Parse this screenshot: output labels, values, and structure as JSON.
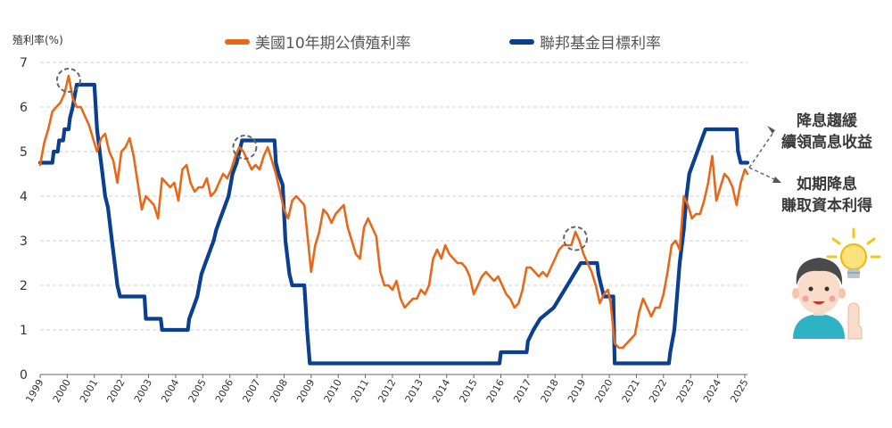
{
  "chart_data": {
    "type": "line",
    "ylabel": "殖利率(%)",
    "ylim": [
      0,
      7
    ],
    "yticks": [
      "0",
      "1",
      "2",
      "3",
      "4",
      "5",
      "6",
      "7"
    ],
    "xlim": [
      1999,
      2025.1
    ],
    "xticks": [
      "1999",
      "2000",
      "2001",
      "2002",
      "2003",
      "2004",
      "2005",
      "2006",
      "2007",
      "2008",
      "2009",
      "2010",
      "2011",
      "2012",
      "2013",
      "2014",
      "2015",
      "2016",
      "2017",
      "2018",
      "2019",
      "2020",
      "2021",
      "2022",
      "2023",
      "2024",
      "2025"
    ],
    "legend_position": "top",
    "grid": "horizontal-dashed",
    "series": [
      {
        "name": "美國10年期公債殖利率",
        "color": "#E8681A",
        "points": [
          [
            1999.0,
            4.7
          ],
          [
            1999.15,
            5.2
          ],
          [
            1999.3,
            5.5
          ],
          [
            1999.45,
            5.9
          ],
          [
            1999.6,
            6.0
          ],
          [
            1999.75,
            6.1
          ],
          [
            1999.9,
            6.3
          ],
          [
            2000.05,
            6.7
          ],
          [
            2000.2,
            6.2
          ],
          [
            2000.35,
            6.0
          ],
          [
            2000.5,
            6.0
          ],
          [
            2000.65,
            5.8
          ],
          [
            2000.8,
            5.6
          ],
          [
            2000.95,
            5.3
          ],
          [
            2001.1,
            5.0
          ],
          [
            2001.25,
            5.3
          ],
          [
            2001.4,
            5.4
          ],
          [
            2001.55,
            5.0
          ],
          [
            2001.7,
            4.8
          ],
          [
            2001.85,
            4.3
          ],
          [
            2002.0,
            5.0
          ],
          [
            2002.15,
            5.1
          ],
          [
            2002.3,
            5.3
          ],
          [
            2002.45,
            4.9
          ],
          [
            2002.6,
            4.3
          ],
          [
            2002.75,
            3.7
          ],
          [
            2002.9,
            4.0
          ],
          [
            2003.05,
            3.9
          ],
          [
            2003.2,
            3.8
          ],
          [
            2003.35,
            3.5
          ],
          [
            2003.5,
            4.4
          ],
          [
            2003.65,
            4.3
          ],
          [
            2003.8,
            4.2
          ],
          [
            2003.95,
            4.3
          ],
          [
            2004.1,
            3.9
          ],
          [
            2004.25,
            4.6
          ],
          [
            2004.4,
            4.7
          ],
          [
            2004.55,
            4.3
          ],
          [
            2004.7,
            4.1
          ],
          [
            2004.85,
            4.2
          ],
          [
            2005.0,
            4.2
          ],
          [
            2005.15,
            4.4
          ],
          [
            2005.3,
            4.0
          ],
          [
            2005.45,
            4.1
          ],
          [
            2005.6,
            4.3
          ],
          [
            2005.75,
            4.5
          ],
          [
            2005.9,
            4.4
          ],
          [
            2006.05,
            4.6
          ],
          [
            2006.2,
            4.9
          ],
          [
            2006.35,
            5.1
          ],
          [
            2006.5,
            5.0
          ],
          [
            2006.65,
            4.8
          ],
          [
            2006.8,
            4.6
          ],
          [
            2006.95,
            4.7
          ],
          [
            2007.1,
            4.6
          ],
          [
            2007.25,
            4.9
          ],
          [
            2007.4,
            5.1
          ],
          [
            2007.55,
            4.8
          ],
          [
            2007.7,
            4.5
          ],
          [
            2007.85,
            4.1
          ],
          [
            2008.0,
            3.7
          ],
          [
            2008.15,
            3.5
          ],
          [
            2008.3,
            3.9
          ],
          [
            2008.45,
            4.0
          ],
          [
            2008.6,
            3.9
          ],
          [
            2008.75,
            3.8
          ],
          [
            2008.9,
            2.9
          ],
          [
            2009.0,
            2.3
          ],
          [
            2009.15,
            2.9
          ],
          [
            2009.3,
            3.2
          ],
          [
            2009.45,
            3.7
          ],
          [
            2009.6,
            3.6
          ],
          [
            2009.75,
            3.4
          ],
          [
            2009.9,
            3.6
          ],
          [
            2010.05,
            3.7
          ],
          [
            2010.2,
            3.8
          ],
          [
            2010.35,
            3.3
          ],
          [
            2010.5,
            3.0
          ],
          [
            2010.65,
            2.7
          ],
          [
            2010.8,
            2.6
          ],
          [
            2010.95,
            3.3
          ],
          [
            2011.1,
            3.5
          ],
          [
            2011.25,
            3.3
          ],
          [
            2011.4,
            3.1
          ],
          [
            2011.55,
            2.3
          ],
          [
            2011.7,
            2.0
          ],
          [
            2011.85,
            2.0
          ],
          [
            2012.0,
            1.9
          ],
          [
            2012.15,
            2.1
          ],
          [
            2012.3,
            1.7
          ],
          [
            2012.45,
            1.5
          ],
          [
            2012.6,
            1.6
          ],
          [
            2012.75,
            1.7
          ],
          [
            2012.9,
            1.7
          ],
          [
            2013.05,
            1.9
          ],
          [
            2013.2,
            1.8
          ],
          [
            2013.35,
            2.0
          ],
          [
            2013.5,
            2.6
          ],
          [
            2013.65,
            2.8
          ],
          [
            2013.8,
            2.6
          ],
          [
            2013.95,
            2.9
          ],
          [
            2014.1,
            2.7
          ],
          [
            2014.25,
            2.6
          ],
          [
            2014.4,
            2.5
          ],
          [
            2014.55,
            2.5
          ],
          [
            2014.7,
            2.4
          ],
          [
            2014.85,
            2.2
          ],
          [
            2015.0,
            1.8
          ],
          [
            2015.15,
            2.0
          ],
          [
            2015.3,
            2.2
          ],
          [
            2015.45,
            2.3
          ],
          [
            2015.6,
            2.2
          ],
          [
            2015.75,
            2.1
          ],
          [
            2015.9,
            2.2
          ],
          [
            2016.05,
            2.0
          ],
          [
            2016.2,
            1.8
          ],
          [
            2016.35,
            1.7
          ],
          [
            2016.5,
            1.5
          ],
          [
            2016.65,
            1.6
          ],
          [
            2016.8,
            1.9
          ],
          [
            2016.95,
            2.4
          ],
          [
            2017.1,
            2.4
          ],
          [
            2017.25,
            2.3
          ],
          [
            2017.4,
            2.2
          ],
          [
            2017.55,
            2.3
          ],
          [
            2017.7,
            2.2
          ],
          [
            2017.85,
            2.4
          ],
          [
            2018.0,
            2.6
          ],
          [
            2018.15,
            2.8
          ],
          [
            2018.3,
            2.9
          ],
          [
            2018.45,
            2.9
          ],
          [
            2018.6,
            2.9
          ],
          [
            2018.75,
            3.2
          ],
          [
            2018.9,
            3.0
          ],
          [
            2019.05,
            2.7
          ],
          [
            2019.2,
            2.5
          ],
          [
            2019.35,
            2.3
          ],
          [
            2019.5,
            2.0
          ],
          [
            2019.65,
            1.6
          ],
          [
            2019.8,
            1.8
          ],
          [
            2019.95,
            1.9
          ],
          [
            2020.05,
            1.6
          ],
          [
            2020.2,
            0.7
          ],
          [
            2020.35,
            0.6
          ],
          [
            2020.5,
            0.6
          ],
          [
            2020.65,
            0.7
          ],
          [
            2020.8,
            0.8
          ],
          [
            2020.95,
            0.9
          ],
          [
            2021.1,
            1.4
          ],
          [
            2021.25,
            1.7
          ],
          [
            2021.4,
            1.5
          ],
          [
            2021.55,
            1.3
          ],
          [
            2021.7,
            1.5
          ],
          [
            2021.85,
            1.5
          ],
          [
            2022.0,
            1.8
          ],
          [
            2022.15,
            2.3
          ],
          [
            2022.3,
            2.9
          ],
          [
            2022.45,
            3.0
          ],
          [
            2022.6,
            2.8
          ],
          [
            2022.75,
            4.0
          ],
          [
            2022.9,
            3.8
          ],
          [
            2023.05,
            3.5
          ],
          [
            2023.2,
            3.6
          ],
          [
            2023.35,
            3.6
          ],
          [
            2023.5,
            3.9
          ],
          [
            2023.65,
            4.3
          ],
          [
            2023.8,
            4.9
          ],
          [
            2023.95,
            3.9
          ],
          [
            2024.1,
            4.2
          ],
          [
            2024.25,
            4.5
          ],
          [
            2024.4,
            4.4
          ],
          [
            2024.55,
            4.2
          ],
          [
            2024.7,
            3.8
          ],
          [
            2024.85,
            4.3
          ],
          [
            2025.0,
            4.6
          ],
          [
            2025.1,
            4.5
          ]
        ]
      },
      {
        "name": "聯邦基金目標利率",
        "color": "#0B3F8F",
        "points": [
          [
            1999.0,
            4.75
          ],
          [
            1999.45,
            4.75
          ],
          [
            1999.5,
            5.0
          ],
          [
            1999.65,
            5.0
          ],
          [
            1999.7,
            5.25
          ],
          [
            1999.85,
            5.25
          ],
          [
            1999.9,
            5.5
          ],
          [
            2000.05,
            5.5
          ],
          [
            2000.1,
            5.75
          ],
          [
            2000.2,
            6.0
          ],
          [
            2000.35,
            6.5
          ],
          [
            2001.0,
            6.5
          ],
          [
            2001.05,
            6.0
          ],
          [
            2001.1,
            5.5
          ],
          [
            2001.2,
            5.0
          ],
          [
            2001.3,
            4.5
          ],
          [
            2001.4,
            4.0
          ],
          [
            2001.5,
            3.75
          ],
          [
            2001.65,
            3.0
          ],
          [
            2001.75,
            2.5
          ],
          [
            2001.85,
            2.0
          ],
          [
            2001.95,
            1.75
          ],
          [
            2002.85,
            1.75
          ],
          [
            2002.9,
            1.25
          ],
          [
            2003.45,
            1.25
          ],
          [
            2003.5,
            1.0
          ],
          [
            2004.45,
            1.0
          ],
          [
            2004.5,
            1.25
          ],
          [
            2004.65,
            1.5
          ],
          [
            2004.8,
            1.75
          ],
          [
            2004.95,
            2.25
          ],
          [
            2005.1,
            2.5
          ],
          [
            2005.25,
            2.75
          ],
          [
            2005.4,
            3.0
          ],
          [
            2005.5,
            3.25
          ],
          [
            2005.65,
            3.5
          ],
          [
            2005.8,
            3.75
          ],
          [
            2005.95,
            4.0
          ],
          [
            2006.1,
            4.5
          ],
          [
            2006.25,
            4.75
          ],
          [
            2006.45,
            5.25
          ],
          [
            2007.65,
            5.25
          ],
          [
            2007.7,
            4.75
          ],
          [
            2007.8,
            4.5
          ],
          [
            2007.95,
            4.25
          ],
          [
            2008.05,
            3.0
          ],
          [
            2008.2,
            2.25
          ],
          [
            2008.3,
            2.0
          ],
          [
            2008.75,
            2.0
          ],
          [
            2008.8,
            1.5
          ],
          [
            2008.85,
            1.0
          ],
          [
            2008.95,
            0.25
          ],
          [
            2015.95,
            0.25
          ],
          [
            2016.0,
            0.5
          ],
          [
            2016.95,
            0.5
          ],
          [
            2017.0,
            0.75
          ],
          [
            2017.2,
            1.0
          ],
          [
            2017.45,
            1.25
          ],
          [
            2017.95,
            1.5
          ],
          [
            2018.2,
            1.75
          ],
          [
            2018.45,
            2.0
          ],
          [
            2018.7,
            2.25
          ],
          [
            2018.95,
            2.5
          ],
          [
            2019.55,
            2.5
          ],
          [
            2019.6,
            2.25
          ],
          [
            2019.7,
            2.0
          ],
          [
            2019.8,
            1.75
          ],
          [
            2020.15,
            1.75
          ],
          [
            2020.2,
            0.25
          ],
          [
            2022.2,
            0.25
          ],
          [
            2022.25,
            0.5
          ],
          [
            2022.4,
            1.0
          ],
          [
            2022.5,
            1.75
          ],
          [
            2022.6,
            2.5
          ],
          [
            2022.75,
            3.25
          ],
          [
            2022.85,
            4.0
          ],
          [
            2022.95,
            4.5
          ],
          [
            2023.1,
            4.75
          ],
          [
            2023.25,
            5.0
          ],
          [
            2023.4,
            5.25
          ],
          [
            2023.55,
            5.5
          ],
          [
            2024.7,
            5.5
          ],
          [
            2024.75,
            5.0
          ],
          [
            2024.85,
            4.75
          ],
          [
            2025.1,
            4.75
          ]
        ]
      }
    ],
    "highlight_circles": [
      [
        2000.05,
        6.6
      ],
      [
        2006.55,
        5.1
      ],
      [
        2018.75,
        3.05
      ]
    ],
    "annotations": [
      {
        "text_line1": "降息趨緩",
        "text_line2": "續領高息收益"
      },
      {
        "text_line1": "如期降息",
        "text_line2": "賺取資本利得"
      }
    ]
  }
}
